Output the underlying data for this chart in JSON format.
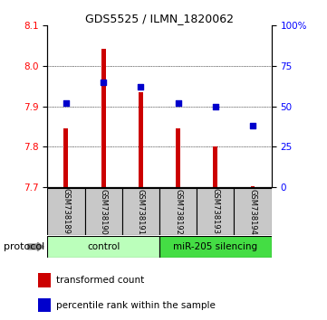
{
  "title": "GDS5525 / ILMN_1820062",
  "samples": [
    "GSM738189",
    "GSM738190",
    "GSM738191",
    "GSM738192",
    "GSM738193",
    "GSM738194"
  ],
  "red_values": [
    7.845,
    8.042,
    7.935,
    7.845,
    7.8,
    7.702
  ],
  "blue_values": [
    52,
    65,
    62,
    52,
    50,
    38
  ],
  "ymin": 7.7,
  "ymax": 8.1,
  "y_ticks_red": [
    7.7,
    7.8,
    7.9,
    8.0,
    8.1
  ],
  "y_ticks_blue": [
    0,
    25,
    50,
    75,
    100
  ],
  "y_ticks_blue_labels": [
    "0",
    "25",
    "50",
    "75",
    "100%"
  ],
  "control_color": "#bbffbb",
  "treatment_color": "#44dd44",
  "bar_color": "#cc0000",
  "dot_color": "#0000cc",
  "protocol_label": "protocol",
  "legend_red": "transformed count",
  "legend_blue": "percentile rank within the sample",
  "bar_width": 0.12
}
